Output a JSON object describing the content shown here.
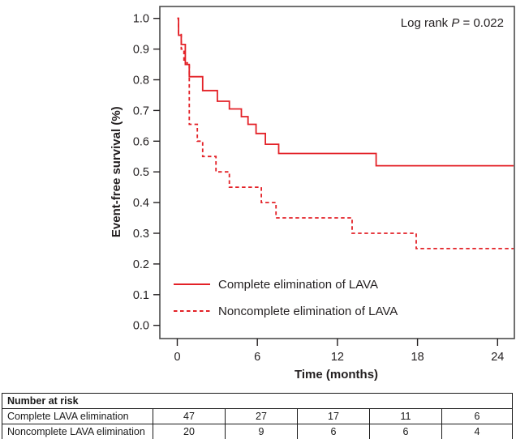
{
  "annotation": {
    "parts": [
      {
        "text": "Log rank ",
        "italic": false
      },
      {
        "text": "P",
        "italic": true
      },
      {
        "text": " = 0.022",
        "italic": false
      }
    ]
  },
  "chart_data": {
    "type": "line",
    "subtype": "kaplan-meier-step",
    "title": "",
    "xlabel": "Time (months)",
    "ylabel": "Event-free survival (%)",
    "xlim": [
      0,
      25.2
    ],
    "ylim": [
      0.0,
      1.0
    ],
    "xticks": [
      0,
      6,
      12,
      18,
      24
    ],
    "yticks": [
      0.0,
      0.1,
      0.2,
      0.3,
      0.4,
      0.5,
      0.6,
      0.7,
      0.8,
      0.9,
      1.0
    ],
    "grid": false,
    "legend_position": "inside-lower-left",
    "line_color": "#e32127",
    "axis_color": "#4d4d4d",
    "text_color": "#231f20",
    "series": [
      {
        "name": "Complete elimination of LAVA",
        "style": "solid",
        "points": [
          [
            0,
            1.0
          ],
          [
            0.1,
            0.945
          ],
          [
            0.3,
            0.915
          ],
          [
            0.6,
            0.85
          ],
          [
            0.9,
            0.81
          ],
          [
            1.9,
            0.765
          ],
          [
            3.0,
            0.73
          ],
          [
            3.9,
            0.705
          ],
          [
            4.8,
            0.68
          ],
          [
            5.3,
            0.655
          ],
          [
            5.9,
            0.625
          ],
          [
            6.6,
            0.59
          ],
          [
            7.6,
            0.56
          ],
          [
            14.9,
            0.52
          ],
          [
            25.2,
            0.52
          ]
        ]
      },
      {
        "name": "Noncomplete elimination of LAVA",
        "style": "dashed",
        "points": [
          [
            0,
            1.0
          ],
          [
            0.1,
            0.95
          ],
          [
            0.3,
            0.9
          ],
          [
            0.5,
            0.855
          ],
          [
            0.9,
            0.655
          ],
          [
            1.5,
            0.6
          ],
          [
            1.9,
            0.55
          ],
          [
            2.9,
            0.5
          ],
          [
            3.9,
            0.45
          ],
          [
            6.3,
            0.4
          ],
          [
            7.4,
            0.35
          ],
          [
            13.1,
            0.3
          ],
          [
            17.9,
            0.25
          ],
          [
            25.2,
            0.25
          ]
        ]
      }
    ]
  },
  "risk_table": {
    "header": "Number at risk",
    "rows": [
      {
        "label": "Complete LAVA elimination",
        "values": [
          "47",
          "27",
          "17",
          "11",
          "6"
        ]
      },
      {
        "label": "Noncomplete LAVA elimination",
        "values": [
          "20",
          "9",
          "6",
          "6",
          "4"
        ]
      }
    ]
  }
}
